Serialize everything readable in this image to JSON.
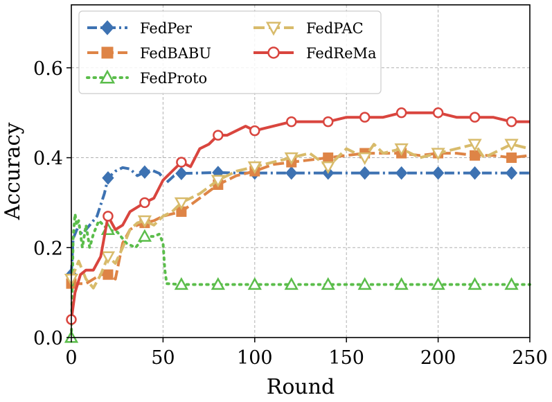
{
  "chart_data": {
    "type": "line",
    "title": "",
    "xlabel": "Round",
    "ylabel": "Accuracy",
    "xlim": [
      0,
      250
    ],
    "ylim": [
      0,
      0.74
    ],
    "xticks": [
      0,
      50,
      100,
      150,
      200,
      250
    ],
    "xtick_labels": [
      "0",
      "50",
      "100",
      "150",
      "200",
      "250"
    ],
    "yticks": [
      0.0,
      0.2,
      0.4,
      0.6
    ],
    "ytick_labels": [
      "0.0",
      "0.2",
      "0.4",
      "0.6"
    ],
    "grid": true,
    "legend": {
      "position": "top-left",
      "columns": 2
    },
    "series": [
      {
        "name": "FedPer",
        "color": "#3d72b2",
        "style": "dash-dot",
        "marker": "diamond",
        "x": [
          0,
          1,
          3,
          6,
          10,
          14,
          18,
          20,
          24,
          28,
          32,
          36,
          40,
          44,
          48,
          52,
          56,
          60,
          70,
          80,
          90,
          100,
          120,
          140,
          160,
          180,
          200,
          220,
          240,
          250
        ],
        "y": [
          0.14,
          0.22,
          0.24,
          0.23,
          0.25,
          0.27,
          0.32,
          0.355,
          0.37,
          0.378,
          0.375,
          0.36,
          0.368,
          0.372,
          0.365,
          0.345,
          0.36,
          0.365,
          0.366,
          0.367,
          0.366,
          0.366,
          0.366,
          0.366,
          0.366,
          0.366,
          0.366,
          0.366,
          0.366,
          0.366
        ]
      },
      {
        "name": "FedBABU",
        "color": "#de8446",
        "style": "dashed",
        "marker": "square",
        "x": [
          0,
          2,
          5,
          8,
          12,
          16,
          20,
          24,
          28,
          32,
          36,
          40,
          45,
          50,
          55,
          60,
          70,
          80,
          90,
          100,
          110,
          120,
          130,
          140,
          150,
          160,
          170,
          180,
          190,
          200,
          210,
          220,
          230,
          240,
          250
        ],
        "y": [
          0.12,
          0.12,
          0.12,
          0.12,
          0.13,
          0.14,
          0.14,
          0.13,
          0.21,
          0.24,
          0.25,
          0.255,
          0.26,
          0.27,
          0.275,
          0.28,
          0.31,
          0.34,
          0.36,
          0.37,
          0.385,
          0.39,
          0.395,
          0.4,
          0.405,
          0.41,
          0.41,
          0.41,
          0.405,
          0.41,
          0.41,
          0.405,
          0.405,
          0.4,
          0.405
        ]
      },
      {
        "name": "FedProto",
        "color": "#5bbd4b",
        "style": "dotted",
        "marker": "triangle-up",
        "x": [
          0,
          1,
          2,
          3,
          4,
          6,
          8,
          10,
          12,
          15,
          20,
          25,
          30,
          35,
          40,
          45,
          48,
          50,
          51,
          52,
          60,
          80,
          100,
          120,
          140,
          160,
          180,
          200,
          220,
          240,
          250
        ],
        "y": [
          0.0,
          0.22,
          0.275,
          0.25,
          0.26,
          0.2,
          0.25,
          0.2,
          0.23,
          0.26,
          0.24,
          0.235,
          0.21,
          0.2,
          0.225,
          0.225,
          0.23,
          0.21,
          0.15,
          0.12,
          0.118,
          0.118,
          0.118,
          0.118,
          0.118,
          0.118,
          0.118,
          0.118,
          0.118,
          0.118,
          0.118
        ]
      },
      {
        "name": "FedPAC",
        "color": "#d8bb6b",
        "style": "dashed",
        "marker": "triangle-down",
        "x": [
          0,
          4,
          8,
          12,
          16,
          20,
          24,
          28,
          32,
          36,
          40,
          45,
          50,
          55,
          60,
          70,
          80,
          90,
          100,
          110,
          120,
          130,
          140,
          150,
          160,
          165,
          170,
          180,
          190,
          200,
          210,
          220,
          225,
          230,
          240,
          250
        ],
        "y": [
          0.13,
          0.17,
          0.13,
          0.11,
          0.14,
          0.18,
          0.165,
          0.2,
          0.24,
          0.255,
          0.26,
          0.25,
          0.27,
          0.28,
          0.3,
          0.32,
          0.35,
          0.37,
          0.38,
          0.39,
          0.4,
          0.41,
          0.38,
          0.42,
          0.4,
          0.43,
          0.41,
          0.42,
          0.4,
          0.41,
          0.42,
          0.43,
          0.4,
          0.41,
          0.43,
          0.42
        ]
      },
      {
        "name": "FedReMa",
        "color": "#d9453e",
        "style": "solid",
        "marker": "circle",
        "x": [
          0,
          2,
          5,
          8,
          12,
          16,
          20,
          24,
          28,
          32,
          36,
          40,
          45,
          50,
          55,
          60,
          65,
          70,
          75,
          80,
          85,
          90,
          95,
          100,
          110,
          120,
          130,
          140,
          150,
          160,
          170,
          180,
          190,
          200,
          210,
          220,
          230,
          240,
          250
        ],
        "y": [
          0.04,
          0.1,
          0.14,
          0.15,
          0.15,
          0.18,
          0.27,
          0.24,
          0.25,
          0.28,
          0.29,
          0.3,
          0.31,
          0.35,
          0.37,
          0.39,
          0.38,
          0.42,
          0.43,
          0.45,
          0.45,
          0.46,
          0.47,
          0.46,
          0.47,
          0.48,
          0.48,
          0.48,
          0.49,
          0.49,
          0.49,
          0.5,
          0.5,
          0.5,
          0.49,
          0.49,
          0.49,
          0.48,
          0.48
        ]
      }
    ]
  }
}
